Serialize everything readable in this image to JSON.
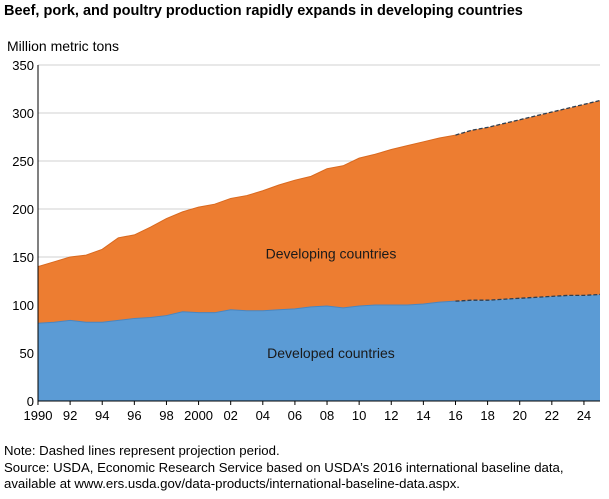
{
  "chart_data": {
    "type": "area",
    "stacked": true,
    "title": "Beef, pork, and poultry production rapidly expands in developing countries",
    "ylabel": "Million metric tons",
    "xlabel": "",
    "ylim": [
      0,
      350
    ],
    "xlim": [
      1990,
      2025
    ],
    "yticks": [
      0,
      50,
      100,
      150,
      200,
      250,
      300,
      350
    ],
    "xticks": [
      {
        "value": 1990,
        "label": "1990"
      },
      {
        "value": 1992,
        "label": "92"
      },
      {
        "value": 1994,
        "label": "94"
      },
      {
        "value": 1996,
        "label": "96"
      },
      {
        "value": 1998,
        "label": "98"
      },
      {
        "value": 2000,
        "label": "2000"
      },
      {
        "value": 2002,
        "label": "02"
      },
      {
        "value": 2004,
        "label": "04"
      },
      {
        "value": 2006,
        "label": "06"
      },
      {
        "value": 2008,
        "label": "08"
      },
      {
        "value": 2010,
        "label": "10"
      },
      {
        "value": 2012,
        "label": "12"
      },
      {
        "value": 2014,
        "label": "14"
      },
      {
        "value": 2016,
        "label": "16"
      },
      {
        "value": 2018,
        "label": "18"
      },
      {
        "value": 2020,
        "label": "20"
      },
      {
        "value": 2022,
        "label": "22"
      },
      {
        "value": 2024,
        "label": "24"
      }
    ],
    "projection_start": 2016,
    "x": [
      1990,
      1991,
      1992,
      1993,
      1994,
      1995,
      1996,
      1997,
      1998,
      1999,
      2000,
      2001,
      2002,
      2003,
      2004,
      2005,
      2006,
      2007,
      2008,
      2009,
      2010,
      2011,
      2012,
      2013,
      2014,
      2015,
      2016,
      2017,
      2018,
      2019,
      2020,
      2021,
      2022,
      2023,
      2024,
      2025
    ],
    "series": [
      {
        "name": "Developed countries",
        "color": "#5b9bd5",
        "values": [
          81,
          82,
          84,
          82,
          82,
          84,
          86,
          87,
          89,
          93,
          92,
          92,
          95,
          94,
          94,
          95,
          96,
          98,
          99,
          97,
          99,
          100,
          100,
          100,
          101,
          103,
          104,
          105,
          105,
          106,
          107,
          108,
          109,
          110,
          110,
          111
        ]
      },
      {
        "name": "Developing countries",
        "color": "#ed7d31",
        "values": [
          59,
          63,
          66,
          70,
          76,
          86,
          87,
          94,
          101,
          104,
          110,
          113,
          116,
          120,
          125,
          130,
          134,
          136,
          143,
          148,
          154,
          157,
          162,
          166,
          169,
          171,
          173,
          177,
          180,
          183,
          186,
          189,
          192,
          195,
          199,
          202
        ]
      }
    ],
    "totals": [
      140,
      145,
      150,
      152,
      158,
      170,
      173,
      181,
      190,
      197,
      202,
      205,
      211,
      214,
      219,
      225,
      230,
      234,
      242,
      245,
      253,
      257,
      262,
      266,
      270,
      274,
      277,
      282,
      285,
      289,
      293,
      297,
      301,
      305,
      309,
      313
    ]
  },
  "note": "Note: Dashed lines represent projection period.",
  "source_line1": "Source: USDA, Economic Research Service based on USDA’s 2016 international baseline data,",
  "source_line2": "available at www.ers.usda.gov/data-products/international-baseline-data.aspx."
}
